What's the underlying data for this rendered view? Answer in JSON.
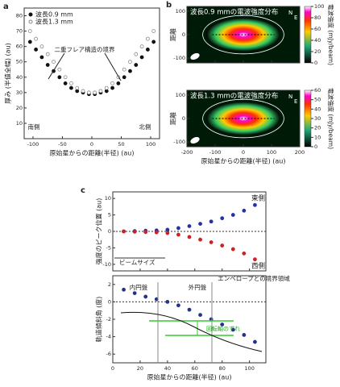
{
  "chart_data": [
    {
      "type": "scatter",
      "panel": "a",
      "x_label": "原始星からの距離(半径) (au)",
      "y_label": "厚み (半値全幅) (au)",
      "xlim": [
        -115,
        115
      ],
      "xticks": [
        -100,
        -50,
        0,
        50,
        100
      ],
      "ylim": [
        0,
        85
      ],
      "yticks": [
        10,
        20,
        30,
        40,
        50,
        60,
        70,
        80
      ],
      "x": [
        -105,
        -95,
        -85,
        -75,
        -65,
        -55,
        -45,
        -35,
        -25,
        -15,
        -5,
        5,
        15,
        25,
        35,
        45,
        55,
        65,
        75,
        85,
        95,
        105
      ],
      "series": [
        {
          "name": "波長0.9 mm",
          "color": "#111111",
          "filled": true,
          "values": [
            63,
            58,
            53,
            48,
            44,
            40,
            36,
            33,
            31,
            30,
            29,
            29,
            30,
            31,
            33,
            36,
            40,
            44,
            48,
            53,
            58,
            63
          ]
        },
        {
          "name": "波長1.3 mm",
          "color": "#888888",
          "filled": false,
          "values": [
            70,
            65,
            60,
            55,
            50,
            45,
            40,
            36,
            33,
            31,
            30,
            30,
            31,
            33,
            36,
            40,
            45,
            50,
            55,
            60,
            65,
            70
          ]
        }
      ],
      "annotations": [
        "二重フレア構造の境界",
        "南側",
        "北側"
      ],
      "legend": "upper left"
    },
    {
      "type": "map",
      "panel": "b",
      "title": "波長0.9 mmの電波強度分布",
      "y_label": "距離",
      "compass": [
        "N",
        "E"
      ],
      "xlim": [
        -200,
        200
      ],
      "xticks": [
        -200,
        -100,
        0,
        100,
        200
      ],
      "ylim": [
        -120,
        120
      ],
      "yticks": [
        -100,
        0,
        100
      ],
      "colorbar": {
        "label": "電波強度 (mJy/beam)",
        "lim": [
          0,
          100
        ],
        "ticks": [
          0,
          20,
          40,
          60,
          80,
          100
        ]
      }
    },
    {
      "type": "map",
      "title": "波長1.3 mmの電波強度分布",
      "y_label": "距離",
      "compass": [
        "N",
        "E"
      ],
      "x_label": "原始星からの距離(半径) (au)",
      "xlim": [
        -200,
        200
      ],
      "xticks": [
        -200,
        -100,
        0,
        100,
        200
      ],
      "ylim": [
        -120,
        120
      ],
      "yticks": [
        -100,
        0,
        100
      ],
      "colorbar": {
        "label": "電波強度 (mJy/beam)",
        "lim": [
          0,
          60
        ],
        "ticks": [
          0,
          10,
          20,
          30,
          40,
          50,
          60
        ]
      }
    },
    {
      "type": "scatter",
      "panel": "c",
      "y_label": "強度のピーク位置 (au)",
      "xlim": [
        0,
        112
      ],
      "xticks": [
        0,
        20,
        40,
        60,
        80,
        100
      ],
      "ylim": [
        -12,
        12
      ],
      "yticks": [
        -10,
        -5,
        0,
        5,
        10
      ],
      "x": [
        8,
        16,
        24,
        32,
        40,
        48,
        56,
        64,
        72,
        80,
        88,
        96,
        104
      ],
      "series": [
        {
          "name": "東側",
          "color": "#2233aa",
          "filled": true,
          "values": [
            0,
            0.1,
            0.2,
            0.3,
            0.5,
            1,
            1.6,
            2.3,
            3,
            4,
            5,
            6.3,
            8
          ]
        },
        {
          "name": "西側",
          "color": "#cc2222",
          "filled": true,
          "values": [
            0,
            -0.1,
            -0.2,
            -0.3,
            -0.5,
            -1,
            -1.7,
            -2.5,
            -3.3,
            -4.3,
            -5.4,
            -6.7,
            -8.5
          ]
        }
      ],
      "annotations": [
        "ビームサイズ"
      ]
    },
    {
      "type": "scatter",
      "x_label": "原始星からの距離(半径) (au)",
      "y_label": "軌道傾斜角 (度)",
      "xlim": [
        0,
        112
      ],
      "xticks": [
        0,
        20,
        40,
        60,
        80,
        100
      ],
      "ylim": [
        -7,
        3
      ],
      "yticks": [
        2,
        0,
        -2,
        -4,
        -6
      ],
      "x": [
        8,
        16,
        24,
        32,
        40,
        48,
        56,
        64,
        72,
        80,
        88,
        96,
        104
      ],
      "series": [
        {
          "color": "#223388",
          "filled": true,
          "values": [
            1.4,
            1.0,
            0.6,
            0.3,
            0,
            -0.4,
            -0.9,
            -1.5,
            -2,
            -2.6,
            -3.2,
            -3.8,
            -4.6
          ]
        }
      ],
      "annotations": [
        "内円盤",
        "外円盤",
        "エンベロープとの境界領域",
        "回転軸のずれ"
      ]
    }
  ]
}
